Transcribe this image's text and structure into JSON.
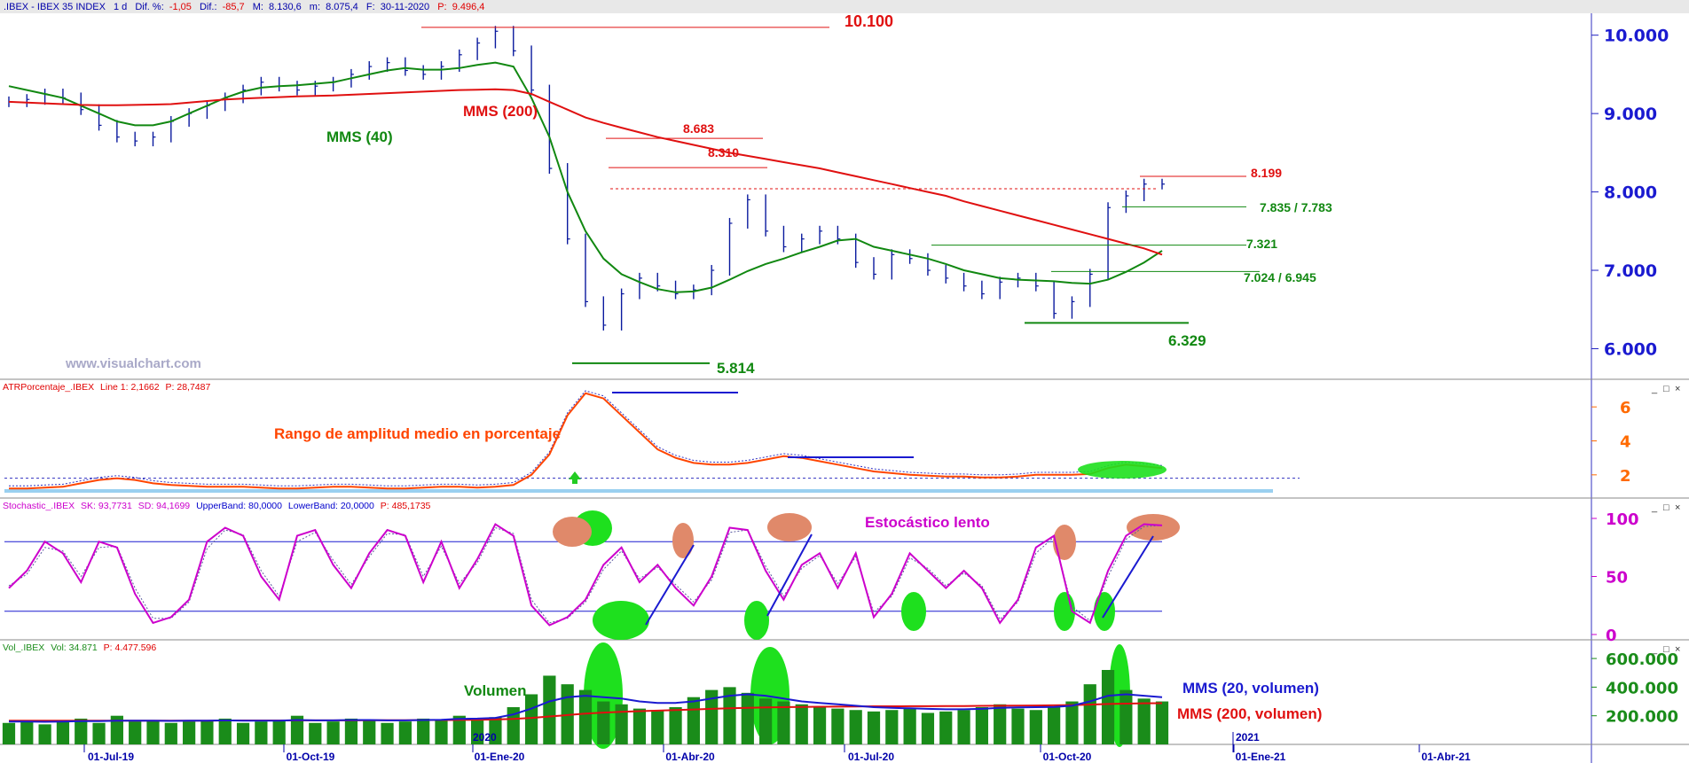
{
  "header": {
    "title": ".IBEX - IBEX 35 INDEX",
    "interval": "1 d",
    "dif_pct_label": "Dif. %:",
    "dif_pct": "-1,05",
    "dif_label": "Dif.:",
    "dif": "-85,7",
    "max_label": "M:",
    "max": "8.130,6",
    "min_label": "m:",
    "min": "8.075,4",
    "date_label": "F:",
    "date": "30-11-2020",
    "p_label": "P:",
    "p": "9.496,4"
  },
  "watermark": "www.visualchart.com",
  "window_buttons": [
    "_",
    "□",
    "×"
  ],
  "colors": {
    "price": "#0a1a9e",
    "ma40": "#118811",
    "ma200": "#e01010",
    "atr": "#ff4500",
    "stoch": "#cc00cc",
    "volume": "#1a8c1a",
    "vol_ma20": "#1a1ad0",
    "band": "#1a1ad0",
    "highlight_green": "#1ee01e",
    "highlight_red": "#e0896a"
  },
  "chart_data": [
    {
      "type": "line",
      "panel": "price",
      "x_ticks": [
        "01-Jul-19",
        "01-Oct-19",
        "01-Ene-20",
        "01-Abr-20",
        "01-Jul-20",
        "01-Oct-20",
        "01-Ene-21",
        "01-Abr-21"
      ],
      "ylim": [
        5700,
        10200
      ],
      "y_ticks": [
        "6.000",
        "7.000",
        "8.000",
        "9.000",
        "10.000"
      ],
      "series": [
        {
          "name": "",
          "values": [
            9150,
            9180,
            9250,
            9200,
            9050,
            8850,
            8700,
            8650,
            8700,
            8900,
            9000,
            9100,
            9200,
            9300,
            9400,
            9350,
            9300,
            9350,
            9400,
            9500,
            9600,
            9650,
            9550,
            9500,
            9600,
            9750,
            9900,
            10050,
            9800,
            9300,
            8300,
            7400,
            6600,
            6300,
            6700,
            6900,
            6800,
            6700,
            6750,
            7000,
            7600,
            7900,
            7500,
            7300,
            7400,
            7500,
            7400,
            7100,
            6950,
            7200,
            7150,
            7000,
            6900,
            6800,
            6700,
            6850,
            6900,
            6800,
            6450,
            6600,
            6950,
            7800,
            7950,
            8100,
            8100
          ]
        },
        {
          "name": "MMS (40)",
          "values": [
            9350,
            9300,
            9250,
            9200,
            9100,
            9000,
            8900,
            8850,
            8850,
            8900,
            9000,
            9100,
            9200,
            9280,
            9330,
            9350,
            9360,
            9380,
            9400,
            9450,
            9500,
            9550,
            9580,
            9560,
            9560,
            9580,
            9620,
            9650,
            9600,
            9200,
            8700,
            8000,
            7500,
            7150,
            6950,
            6850,
            6760,
            6720,
            6730,
            6780,
            6880,
            6990,
            7080,
            7150,
            7230,
            7300,
            7380,
            7400,
            7300,
            7250,
            7200,
            7150,
            7080,
            7000,
            6950,
            6900,
            6880,
            6870,
            6860,
            6840,
            6830,
            6880,
            6980,
            7100,
            7250
          ]
        },
        {
          "name": "MMS (200)",
          "values": [
            9150,
            9140,
            9130,
            9120,
            9110,
            9105,
            9105,
            9110,
            9115,
            9120,
            9140,
            9160,
            9180,
            9190,
            9200,
            9210,
            9220,
            9225,
            9230,
            9240,
            9250,
            9260,
            9270,
            9280,
            9290,
            9300,
            9305,
            9310,
            9300,
            9250,
            9150,
            9050,
            8950,
            8880,
            8820,
            8760,
            8700,
            8650,
            8600,
            8550,
            8500,
            8460,
            8420,
            8380,
            8340,
            8300,
            8250,
            8200,
            8150,
            8100,
            8050,
            8000,
            7950,
            7880,
            7820,
            7760,
            7700,
            7640,
            7580,
            7520,
            7460,
            7400,
            7340,
            7280,
            7200
          ]
        }
      ],
      "levels": [
        {
          "label": "10.100",
          "value": 10100
        },
        {
          "label": "8.683",
          "value": 8683
        },
        {
          "label": "8.310",
          "value": 8310
        },
        {
          "label": "8.199",
          "value": 8199
        },
        {
          "label": "7.835 / 7.783",
          "value": 7810
        },
        {
          "label": "7.321",
          "value": 7321
        },
        {
          "label": "7.024 / 6.945",
          "value": 6985
        },
        {
          "label": "6.329",
          "value": 6329
        },
        {
          "label": "5.814",
          "value": 5814
        }
      ],
      "annotations": [
        "MMS (40)",
        "MMS (200)"
      ]
    },
    {
      "type": "line",
      "panel": "atr",
      "title": "ATRPorcentaje_.IBEX",
      "title_value": "Line 1: 2,1662",
      "title_p": "P: 28,7487",
      "annotation": "Rango de amplitud medio en porcentaje",
      "ylim": [
        1,
        7
      ],
      "y_ticks": [
        "2",
        "4",
        "6"
      ],
      "series": [
        {
          "name": "",
          "values": [
            1.2,
            1.2,
            1.25,
            1.3,
            1.5,
            1.7,
            1.8,
            1.7,
            1.5,
            1.4,
            1.35,
            1.3,
            1.3,
            1.3,
            1.25,
            1.2,
            1.2,
            1.25,
            1.3,
            1.3,
            1.25,
            1.2,
            1.2,
            1.25,
            1.3,
            1.3,
            1.25,
            1.3,
            1.4,
            2.0,
            3.2,
            5.5,
            6.8,
            6.5,
            5.5,
            4.5,
            3.5,
            3.0,
            2.7,
            2.6,
            2.6,
            2.7,
            2.9,
            3.1,
            3.0,
            2.8,
            2.6,
            2.4,
            2.2,
            2.1,
            2.0,
            1.95,
            1.9,
            1.9,
            1.85,
            1.85,
            1.9,
            2.0,
            2.0,
            2.0,
            2.05,
            2.4,
            2.6,
            2.5,
            2.4
          ]
        }
      ]
    },
    {
      "type": "line",
      "panel": "stochastic",
      "title": "Stochastic_.IBEX",
      "title_sk": "SK: 93,7731",
      "title_sd": "SD: 94,1699",
      "title_upper": "UpperBand: 80,0000",
      "title_lower": "LowerBand: 20,0000",
      "title_p": "P: 485,1735",
      "annotation": "Estocástico lento",
      "ylim": [
        0,
        100
      ],
      "y_ticks": [
        "0",
        "50",
        "100"
      ],
      "bands": [
        80,
        20
      ],
      "series": [
        {
          "name": "SK",
          "values": [
            40,
            55,
            80,
            70,
            45,
            80,
            75,
            35,
            10,
            15,
            30,
            80,
            92,
            85,
            50,
            30,
            85,
            90,
            60,
            40,
            70,
            90,
            85,
            45,
            80,
            40,
            65,
            95,
            85,
            25,
            8,
            15,
            30,
            60,
            75,
            45,
            60,
            40,
            25,
            50,
            92,
            90,
            55,
            30,
            60,
            70,
            40,
            70,
            15,
            35,
            70,
            55,
            40,
            55,
            40,
            10,
            30,
            75,
            85,
            20,
            10,
            55,
            85,
            95,
            94
          ]
        },
        {
          "name": "SD",
          "values": [
            42,
            52,
            75,
            72,
            50,
            75,
            76,
            40,
            14,
            14,
            28,
            74,
            90,
            86,
            55,
            33,
            80,
            88,
            64,
            43,
            67,
            87,
            86,
            50,
            76,
            44,
            62,
            92,
            87,
            30,
            10,
            14,
            28,
            56,
            72,
            48,
            58,
            43,
            28,
            47,
            88,
            90,
            59,
            33,
            57,
            68,
            44,
            67,
            19,
            33,
            66,
            57,
            42,
            53,
            42,
            13,
            28,
            70,
            84,
            24,
            12,
            50,
            82,
            93,
            94
          ]
        }
      ]
    },
    {
      "type": "bar",
      "panel": "volume",
      "title": "Vol_.IBEX",
      "title_vol": "Vol: 34.871",
      "title_p": "P: 4.477.596",
      "annotation": "Volumen",
      "ylim": [
        0,
        650000
      ],
      "y_ticks": [
        "200.000",
        "400.000",
        "600.000"
      ],
      "year_label": "2020",
      "legend": [
        {
          "label": "MMS (20, volumen)"
        },
        {
          "label": "MMS (200, volumen)"
        }
      ],
      "x_ticks": [
        "01-Jul-19",
        "01-Oct-19",
        "01-Ene-20",
        "01-Abr-20",
        "01-Jul-20",
        "01-Oct-20",
        "01-Ene-21",
        "01-Abr-21"
      ],
      "x_year_label": "2021",
      "values": [
        150000,
        170000,
        140000,
        160000,
        180000,
        150000,
        200000,
        160000,
        170000,
        150000,
        160000,
        170000,
        180000,
        150000,
        160000,
        170000,
        200000,
        150000,
        160000,
        180000,
        170000,
        150000,
        160000,
        180000,
        170000,
        200000,
        180000,
        190000,
        260000,
        350000,
        480000,
        420000,
        380000,
        300000,
        280000,
        250000,
        240000,
        260000,
        330000,
        380000,
        400000,
        360000,
        320000,
        300000,
        280000,
        260000,
        250000,
        240000,
        230000,
        240000,
        250000,
        220000,
        230000,
        240000,
        260000,
        280000,
        250000,
        240000,
        260000,
        300000,
        420000,
        520000,
        380000,
        320000,
        300000
      ],
      "series": [
        {
          "name": "MMS (20, volumen)",
          "values": [
            160000,
            160000,
            158000,
            160000,
            162000,
            163000,
            165000,
            166000,
            165000,
            164000,
            165000,
            166000,
            168000,
            166000,
            165000,
            166000,
            170000,
            168000,
            168000,
            170000,
            170000,
            168000,
            168000,
            170000,
            172000,
            178000,
            180000,
            185000,
            210000,
            250000,
            300000,
            330000,
            340000,
            330000,
            320000,
            300000,
            290000,
            290000,
            300000,
            320000,
            340000,
            350000,
            340000,
            320000,
            300000,
            290000,
            280000,
            270000,
            260000,
            255000,
            252000,
            248000,
            245000,
            245000,
            248000,
            255000,
            258000,
            260000,
            262000,
            270000,
            300000,
            340000,
            350000,
            340000,
            330000
          ]
        },
        {
          "name": "MMS (200, volumen)",
          "values": [
            165000,
            165000,
            165000,
            165000,
            166000,
            166000,
            166000,
            166000,
            166000,
            166000,
            166000,
            166000,
            167000,
            167000,
            167000,
            167000,
            168000,
            168000,
            168000,
            168000,
            169000,
            169000,
            169000,
            170000,
            170000,
            171000,
            172000,
            174000,
            178000,
            185000,
            195000,
            205000,
            215000,
            222000,
            228000,
            232000,
            236000,
            240000,
            244000,
            248000,
            252000,
            255000,
            258000,
            260000,
            262000,
            263000,
            264000,
            265000,
            266000,
            266000,
            267000,
            267000,
            268000,
            268000,
            269000,
            270000,
            271000,
            272000,
            273000,
            275000,
            278000,
            282000,
            285000,
            287000,
            288000
          ]
        }
      ]
    }
  ]
}
